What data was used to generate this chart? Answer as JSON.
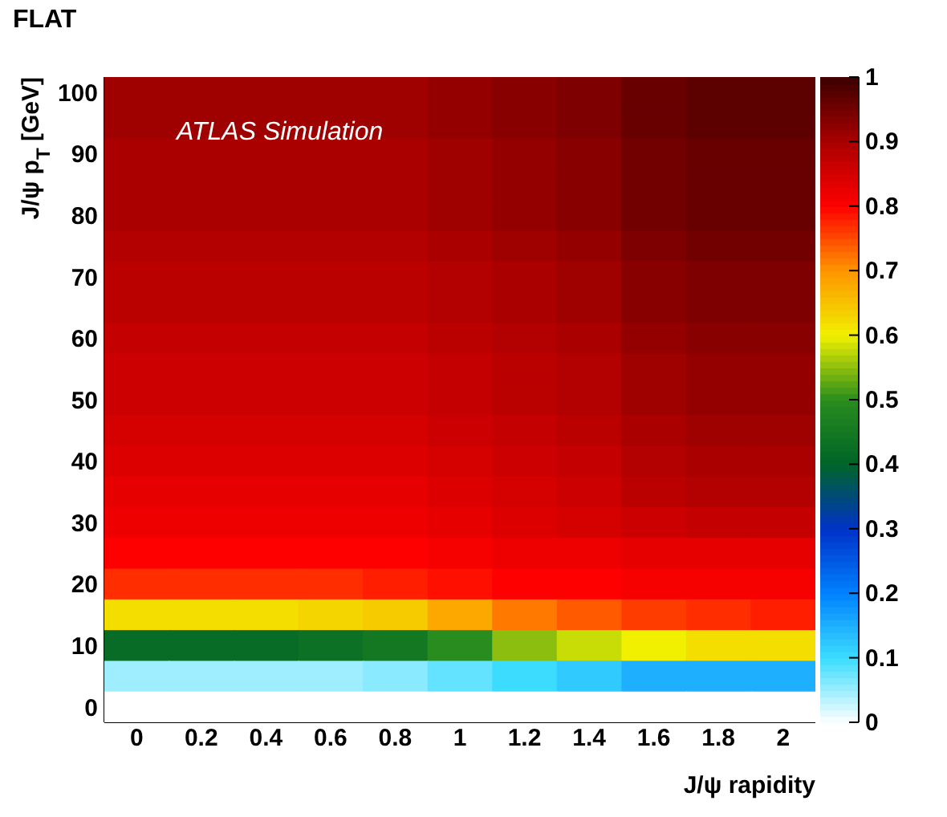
{
  "chart_data": {
    "type": "heatmap",
    "title": "FLAT",
    "xlabel": "J/ψ rapidity",
    "ylabel": "J/ψ p$_{T}$  [GeV]",
    "annotations": [
      "ATLAS Simulation"
    ],
    "categories": [
      "0",
      "0.2",
      "0.4",
      "0.6",
      "0.8",
      "1",
      "1.2",
      "1.4",
      "1.6",
      "1.8",
      "2"
    ],
    "y_categories": [
      "100",
      null,
      "90",
      null,
      "80",
      null,
      "70",
      null,
      "60",
      null,
      "50",
      null,
      "40",
      null,
      "30",
      null,
      "20",
      null,
      "10",
      null,
      "0"
    ],
    "clim": [
      0,
      1
    ],
    "cticks": [
      0,
      0.1,
      0.2,
      0.3,
      0.4,
      0.5,
      0.6,
      0.7,
      0.8,
      0.9,
      1
    ],
    "cells": [
      [
        0.91,
        0.91,
        0.91,
        0.91,
        0.91,
        0.92,
        0.93,
        0.94,
        0.96,
        0.97,
        0.97
      ],
      [
        0.91,
        0.91,
        0.91,
        0.91,
        0.91,
        0.92,
        0.93,
        0.94,
        0.96,
        0.97,
        0.97
      ],
      [
        0.9,
        0.9,
        0.9,
        0.9,
        0.9,
        0.91,
        0.92,
        0.93,
        0.95,
        0.96,
        0.96
      ],
      [
        0.9,
        0.9,
        0.9,
        0.9,
        0.9,
        0.91,
        0.92,
        0.93,
        0.95,
        0.96,
        0.96
      ],
      [
        0.9,
        0.9,
        0.9,
        0.9,
        0.9,
        0.91,
        0.92,
        0.93,
        0.95,
        0.96,
        0.96
      ],
      [
        0.89,
        0.89,
        0.89,
        0.89,
        0.89,
        0.9,
        0.91,
        0.92,
        0.94,
        0.95,
        0.95
      ],
      [
        0.88,
        0.88,
        0.88,
        0.88,
        0.88,
        0.89,
        0.9,
        0.91,
        0.93,
        0.94,
        0.94
      ],
      [
        0.88,
        0.88,
        0.88,
        0.88,
        0.88,
        0.89,
        0.9,
        0.91,
        0.93,
        0.94,
        0.94
      ],
      [
        0.87,
        0.87,
        0.87,
        0.87,
        0.87,
        0.88,
        0.89,
        0.9,
        0.92,
        0.93,
        0.93
      ],
      [
        0.86,
        0.86,
        0.86,
        0.86,
        0.86,
        0.87,
        0.88,
        0.89,
        0.91,
        0.92,
        0.92
      ],
      [
        0.86,
        0.86,
        0.86,
        0.86,
        0.86,
        0.87,
        0.88,
        0.89,
        0.91,
        0.92,
        0.92
      ],
      [
        0.85,
        0.85,
        0.85,
        0.85,
        0.85,
        0.86,
        0.87,
        0.88,
        0.9,
        0.91,
        0.91
      ],
      [
        0.84,
        0.84,
        0.84,
        0.84,
        0.84,
        0.85,
        0.86,
        0.87,
        0.89,
        0.9,
        0.9
      ],
      [
        0.83,
        0.83,
        0.83,
        0.83,
        0.83,
        0.84,
        0.85,
        0.86,
        0.88,
        0.89,
        0.89
      ],
      [
        0.82,
        0.82,
        0.82,
        0.82,
        0.82,
        0.83,
        0.84,
        0.85,
        0.86,
        0.87,
        0.87
      ],
      [
        0.8,
        0.8,
        0.8,
        0.8,
        0.8,
        0.81,
        0.82,
        0.82,
        0.83,
        0.83,
        0.83
      ],
      [
        0.77,
        0.77,
        0.77,
        0.77,
        0.78,
        0.79,
        0.8,
        0.8,
        0.81,
        0.81,
        0.81
      ],
      [
        0.62,
        0.62,
        0.62,
        0.63,
        0.64,
        0.68,
        0.72,
        0.74,
        0.76,
        0.77,
        0.78
      ],
      [
        0.42,
        0.42,
        0.42,
        0.43,
        0.45,
        0.5,
        0.55,
        0.58,
        0.6,
        0.62,
        0.62
      ],
      [
        0.05,
        0.05,
        0.05,
        0.05,
        0.06,
        0.08,
        0.1,
        0.12,
        0.15,
        0.15,
        0.15
      ],
      [
        0,
        0,
        0,
        0,
        0,
        0,
        0,
        0,
        0,
        0,
        0
      ]
    ]
  }
}
